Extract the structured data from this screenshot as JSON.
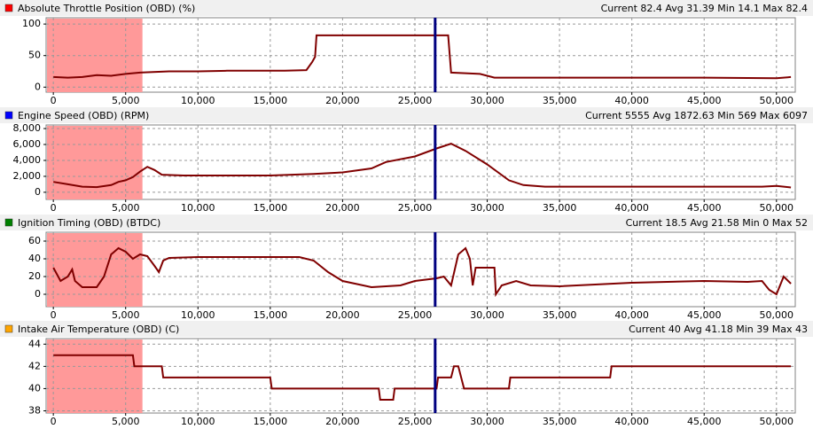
{
  "chart_data": [
    {
      "type": "line",
      "title": "Absolute Throttle Position (OBD) (%)",
      "summary": "Current 82.4 Avg 31.39 Min 14.1 Max 82.4",
      "color": "#ff0000",
      "line_color": "#800000",
      "x": [
        0,
        1000,
        2000,
        3000,
        4000,
        5000,
        6000,
        8000,
        10000,
        12000,
        14000,
        16000,
        17500,
        17900,
        18100,
        18200,
        20000,
        22000,
        24000,
        26000,
        27300,
        27500,
        28500,
        29500,
        30500,
        35000,
        40000,
        45000,
        50000,
        51000
      ],
      "values": [
        16,
        15,
        16,
        19,
        18,
        21,
        23,
        25,
        25,
        26,
        26,
        26,
        27,
        40,
        48,
        82,
        82,
        82,
        82,
        82,
        82,
        23,
        22,
        21,
        15,
        15,
        15,
        15,
        14,
        16
      ],
      "xlim": [
        -500,
        51300
      ],
      "ylim": [
        -8,
        110
      ],
      "xticks": [
        0,
        {
          "value": 5000,
          "label": "5,000"
        },
        {
          "value": 10000,
          "label": "10,000"
        },
        {
          "value": 15000,
          "label": "15,000"
        },
        {
          "value": 20000,
          "label": "20,000"
        },
        {
          "value": 25000,
          "label": "25,000"
        },
        {
          "value": 30000,
          "label": "30,000"
        },
        {
          "value": 35000,
          "label": "35,000"
        },
        {
          "value": 40000,
          "label": "40,000"
        },
        {
          "value": 45000,
          "label": "45,000"
        },
        {
          "value": 50000,
          "label": "50,000"
        }
      ],
      "yticks": [
        0,
        50,
        100
      ],
      "grid": true,
      "shaded_x": [
        -500,
        6100
      ],
      "cursor_x": 26400
    },
    {
      "type": "line",
      "title": "Engine Speed (OBD) (RPM)",
      "summary": "Current 5555 Avg 1872.63 Min 569 Max 6097",
      "color": "#0000ff",
      "line_color": "#800000",
      "x": [
        0,
        1000,
        2000,
        3000,
        4000,
        4500,
        5000,
        5500,
        6000,
        6500,
        7000,
        7500,
        9000,
        12000,
        15000,
        18000,
        20000,
        22000,
        23000,
        25000,
        26500,
        27500,
        28500,
        30000,
        31500,
        32500,
        34000,
        40000,
        45000,
        49000,
        50000,
        51000
      ],
      "values": [
        1300,
        1000,
        700,
        650,
        900,
        1300,
        1500,
        1900,
        2600,
        3200,
        2800,
        2200,
        2100,
        2100,
        2100,
        2300,
        2500,
        3000,
        3800,
        4500,
        5500,
        6097,
        5200,
        3500,
        1500,
        900,
        700,
        700,
        700,
        700,
        800,
        600
      ],
      "xlim": [
        -500,
        51300
      ],
      "ylim": [
        -900,
        8450
      ],
      "xticks": [
        0,
        {
          "value": 5000,
          "label": "5,000"
        },
        {
          "value": 10000,
          "label": "10,000"
        },
        {
          "value": 15000,
          "label": "15,000"
        },
        {
          "value": 20000,
          "label": "20,000"
        },
        {
          "value": 25000,
          "label": "25,000"
        },
        {
          "value": 30000,
          "label": "30,000"
        },
        {
          "value": 35000,
          "label": "35,000"
        },
        {
          "value": 40000,
          "label": "40,000"
        },
        {
          "value": 45000,
          "label": "45,000"
        },
        {
          "value": 50000,
          "label": "50,000"
        }
      ],
      "yticks": [
        0,
        {
          "value": 2000,
          "label": "2,000"
        },
        {
          "value": 4000,
          "label": "4,000"
        },
        {
          "value": 6000,
          "label": "6,000"
        },
        {
          "value": 8000,
          "label": "8,000"
        }
      ],
      "grid": true,
      "shaded_x": [
        -500,
        6100
      ],
      "cursor_x": 26400
    },
    {
      "type": "line",
      "title": "Ignition Timing (OBD) (BTDC)",
      "summary": "Current 18.5 Avg 21.58 Min 0 Max 52",
      "color": "#008000",
      "line_color": "#800000",
      "x": [
        0,
        500,
        1000,
        1300,
        1500,
        2000,
        3000,
        3500,
        4000,
        4500,
        5000,
        5500,
        6000,
        6500,
        7000,
        7300,
        7600,
        8000,
        10000,
        12000,
        14000,
        17000,
        18000,
        19000,
        20000,
        22000,
        24000,
        25000,
        26500,
        27000,
        27500,
        28000,
        28500,
        28800,
        29000,
        29200,
        30500,
        30600,
        31000,
        32000,
        33000,
        35000,
        40000,
        45000,
        48000,
        49000,
        49500,
        50000,
        50500,
        51000
      ],
      "values": [
        30,
        15,
        20,
        28,
        15,
        8,
        8,
        20,
        45,
        52,
        48,
        40,
        45,
        43,
        32,
        25,
        38,
        41,
        42,
        42,
        42,
        42,
        38,
        25,
        15,
        8,
        10,
        15,
        18,
        20,
        10,
        45,
        52,
        40,
        10,
        30,
        30,
        0,
        10,
        15,
        10,
        9,
        13,
        15,
        14,
        15,
        5,
        0,
        20,
        12
      ],
      "xlim": [
        -500,
        51300
      ],
      "ylim": [
        -14,
        70
      ],
      "xticks": [
        0,
        {
          "value": 5000,
          "label": "5,000"
        },
        {
          "value": 10000,
          "label": "10,000"
        },
        {
          "value": 15000,
          "label": "15,000"
        },
        {
          "value": 20000,
          "label": "20,000"
        },
        {
          "value": 25000,
          "label": "25,000"
        },
        {
          "value": 30000,
          "label": "30,000"
        },
        {
          "value": 35000,
          "label": "35,000"
        },
        {
          "value": 40000,
          "label": "40,000"
        },
        {
          "value": 45000,
          "label": "45,000"
        },
        {
          "value": 50000,
          "label": "50,000"
        }
      ],
      "yticks": [
        0,
        20,
        40,
        60
      ],
      "grid": true,
      "shaded_x": [
        -500,
        6100
      ],
      "cursor_x": 26400
    },
    {
      "type": "line",
      "title": "Intake Air Temperature (OBD) (C)",
      "summary": "Current 40 Avg 41.18 Min 39 Max 43",
      "color": "#ffa500",
      "line_color": "#800000",
      "x": [
        0,
        5500,
        5600,
        7500,
        7600,
        15000,
        15100,
        22500,
        22600,
        23500,
        23600,
        26000,
        26500,
        26600,
        27500,
        27700,
        28000,
        28400,
        31500,
        31600,
        38500,
        38600,
        51000
      ],
      "values": [
        43,
        43,
        42,
        42,
        41,
        41,
        40,
        40,
        39,
        39,
        40,
        40,
        40,
        41,
        41,
        42,
        42,
        40,
        40,
        41,
        41,
        42,
        42
      ],
      "xlim": [
        -500,
        51300
      ],
      "ylim": [
        37.8,
        44.5
      ],
      "xticks": [
        0,
        {
          "value": 5000,
          "label": "5,000"
        },
        {
          "value": 10000,
          "label": "10,000"
        },
        {
          "value": 15000,
          "label": "15,000"
        },
        {
          "value": 20000,
          "label": "20,000"
        },
        {
          "value": 25000,
          "label": "25,000"
        },
        {
          "value": 30000,
          "label": "30,000"
        },
        {
          "value": 35000,
          "label": "35,000"
        },
        {
          "value": 40000,
          "label": "40,000"
        },
        {
          "value": 45000,
          "label": "45,000"
        },
        {
          "value": 50000,
          "label": "50,000"
        }
      ],
      "yticks": [
        38,
        40,
        42,
        44
      ],
      "grid": true,
      "shaded_x": [
        -500,
        6100
      ],
      "cursor_x": 26400
    }
  ]
}
